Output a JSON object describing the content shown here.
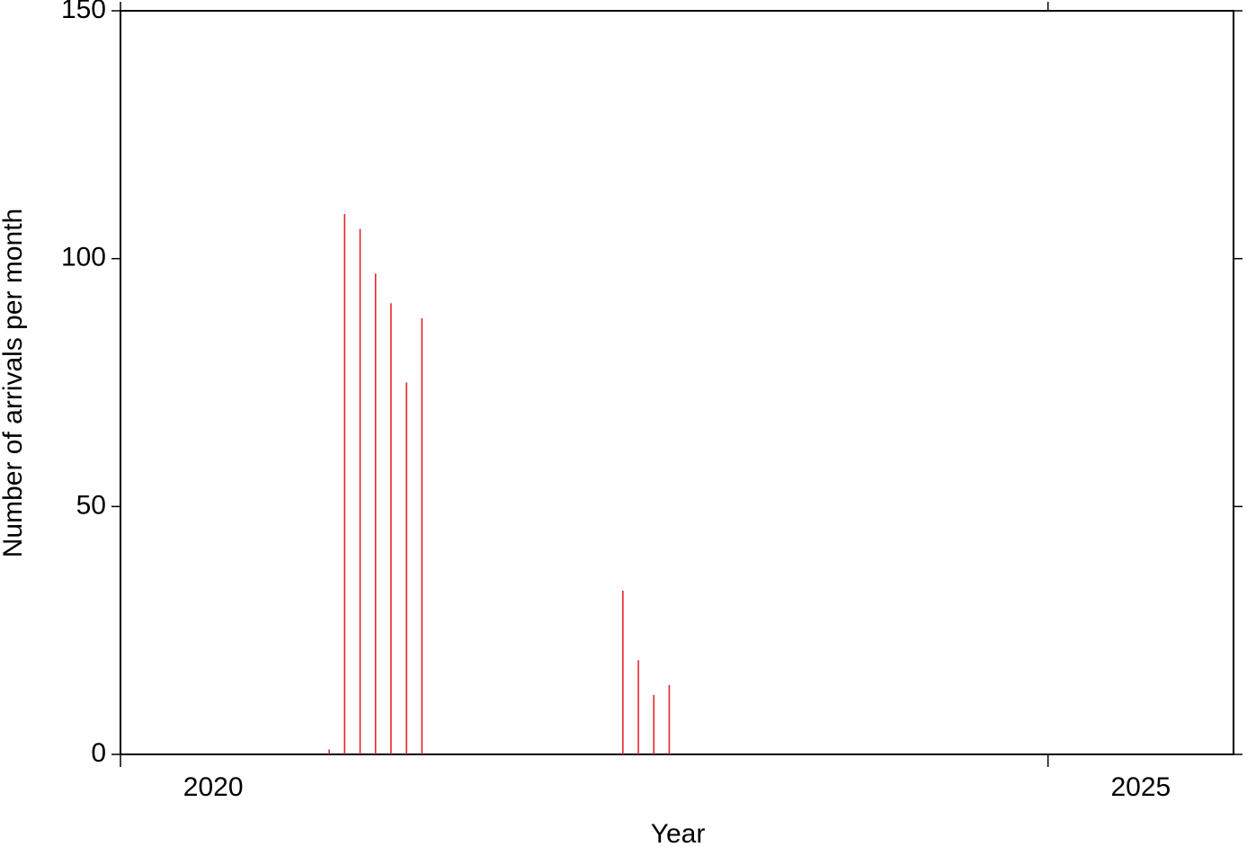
{
  "chart_data": {
    "type": "bar",
    "x_label": "Year",
    "y_label": "Number of arrivals per month",
    "x": [
      2021.125,
      2021.2083,
      2021.2917,
      2021.375,
      2021.4583,
      2021.5417,
      2021.625,
      2022.7083,
      2022.7917,
      2022.875,
      2022.9583
    ],
    "values": [
      1,
      109,
      106,
      97,
      91,
      75,
      88,
      33,
      19,
      12,
      14
    ],
    "color": "#e3262a",
    "xlim": [
      2020,
      2026
    ],
    "xticks": [
      2020,
      2025
    ],
    "ylim": [
      0,
      150
    ],
    "yticks": [
      0,
      50,
      100,
      150
    ]
  }
}
